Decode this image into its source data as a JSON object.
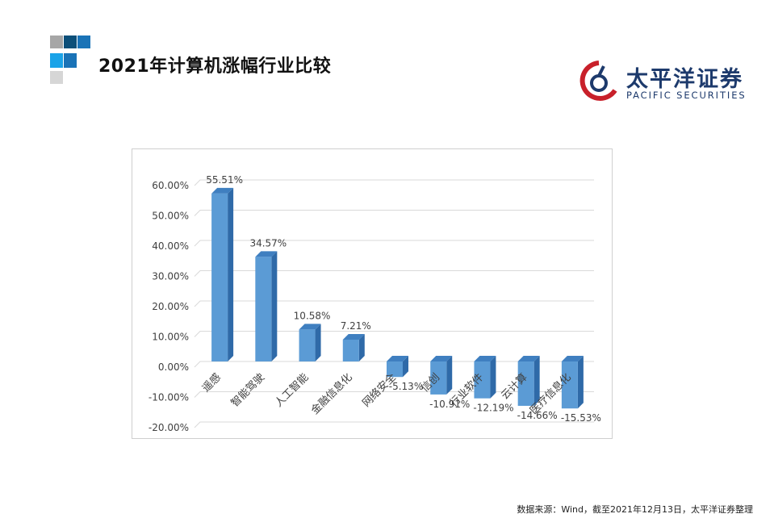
{
  "header": {
    "title": "2021年计算机涨幅行业比较"
  },
  "logo": {
    "name_cn": "太平洋证券",
    "name_en": "PACIFIC SECURITIES"
  },
  "colors": {
    "bar_front": "#5b9bd5",
    "bar_side": "#2f6aa8",
    "bar_top": "#3f7fc0",
    "deco_dark": "#0c4f79",
    "deco_blue": "#1a73b7",
    "deco_light": "#1aa3e8",
    "deco_gray": "#a6a6a6",
    "logo_red": "#c8202a",
    "logo_navy": "#1d3a6c"
  },
  "chart_data": {
    "type": "bar",
    "categories": [
      "遥感",
      "智能驾驶",
      "人工智能",
      "金融信息化",
      "网络安全",
      "信创",
      "行业软件",
      "云计算",
      "医疗信息化"
    ],
    "values": [
      55.51,
      34.57,
      10.58,
      7.21,
      -5.13,
      -10.91,
      -12.19,
      -14.66,
      -15.53
    ],
    "data_labels": [
      "55.51%",
      "34.57%",
      "10.58%",
      "7.21%",
      "-5.13%",
      "-10.91%",
      "-12.19%",
      "-14.66%",
      "-15.53%"
    ],
    "ytick_labels": [
      "60.00%",
      "50.00%",
      "40.00%",
      "30.00%",
      "20.00%",
      "10.00%",
      "0.00%",
      "-10.00%",
      "-20.00%"
    ],
    "ylim": [
      -20,
      60
    ],
    "grid": true,
    "legend": false,
    "style": "3d-column"
  },
  "footer": {
    "source": "数据来源：Wind，截至2021年12月13日，太平洋证券整理"
  }
}
